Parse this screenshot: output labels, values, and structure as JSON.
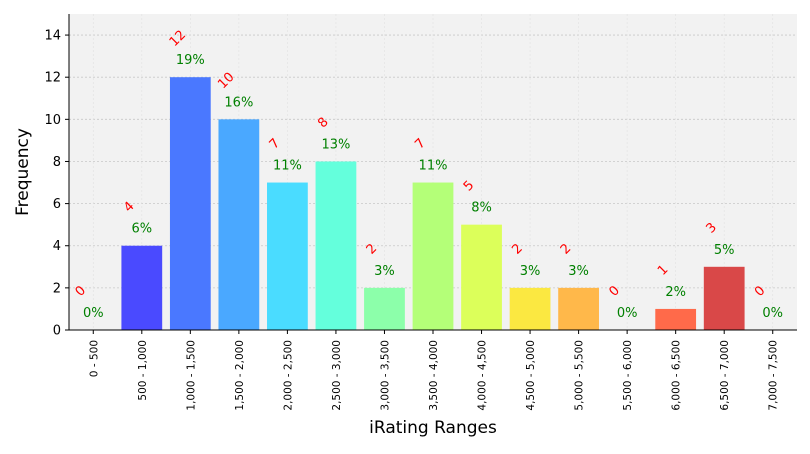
{
  "chart_data": {
    "type": "bar",
    "xlabel": "iRating Ranges",
    "ylabel": "Frequency",
    "ylim": [
      0,
      15
    ],
    "yticks": [
      0,
      2,
      4,
      6,
      8,
      10,
      12,
      14
    ],
    "grid": true,
    "categories": [
      "0 - 500",
      "500 - 1,000",
      "1,000 - 1,500",
      "1,500 - 2,000",
      "2,000 - 2,500",
      "2,500 - 3,000",
      "3,000 - 3,500",
      "3,500 - 4,000",
      "4,000 - 4,500",
      "4,500 - 5,000",
      "5,000 - 5,500",
      "5,500 - 6,000",
      "6,000 - 6,500",
      "6,500 - 7,000",
      "7,000 - 7,500"
    ],
    "values": [
      0,
      4,
      12,
      10,
      7,
      8,
      2,
      7,
      5,
      2,
      2,
      0,
      1,
      3,
      0
    ],
    "count_labels": [
      "0",
      "4",
      "12",
      "10",
      "7",
      "8",
      "2",
      "7",
      "5",
      "2",
      "2",
      "0",
      "1",
      "3",
      "0"
    ],
    "percent_labels": [
      "0%",
      "6%",
      "19%",
      "16%",
      "11%",
      "13%",
      "3%",
      "11%",
      "8%",
      "3%",
      "3%",
      "0%",
      "2%",
      "5%",
      "0%"
    ],
    "colors": [
      "#3a30ff",
      "#4a4aff",
      "#4a78ff",
      "#4aa8ff",
      "#4adcff",
      "#64ffdc",
      "#8cffaa",
      "#b4ff78",
      "#dcff5a",
      "#fbe841",
      "#ffb84a",
      "#ff8a4a",
      "#ff6a4a",
      "#d94848",
      "#c03030"
    ],
    "count_label_color": "#ff0000",
    "percent_label_color": "#008000",
    "plot_background": "#f2f2f2"
  }
}
